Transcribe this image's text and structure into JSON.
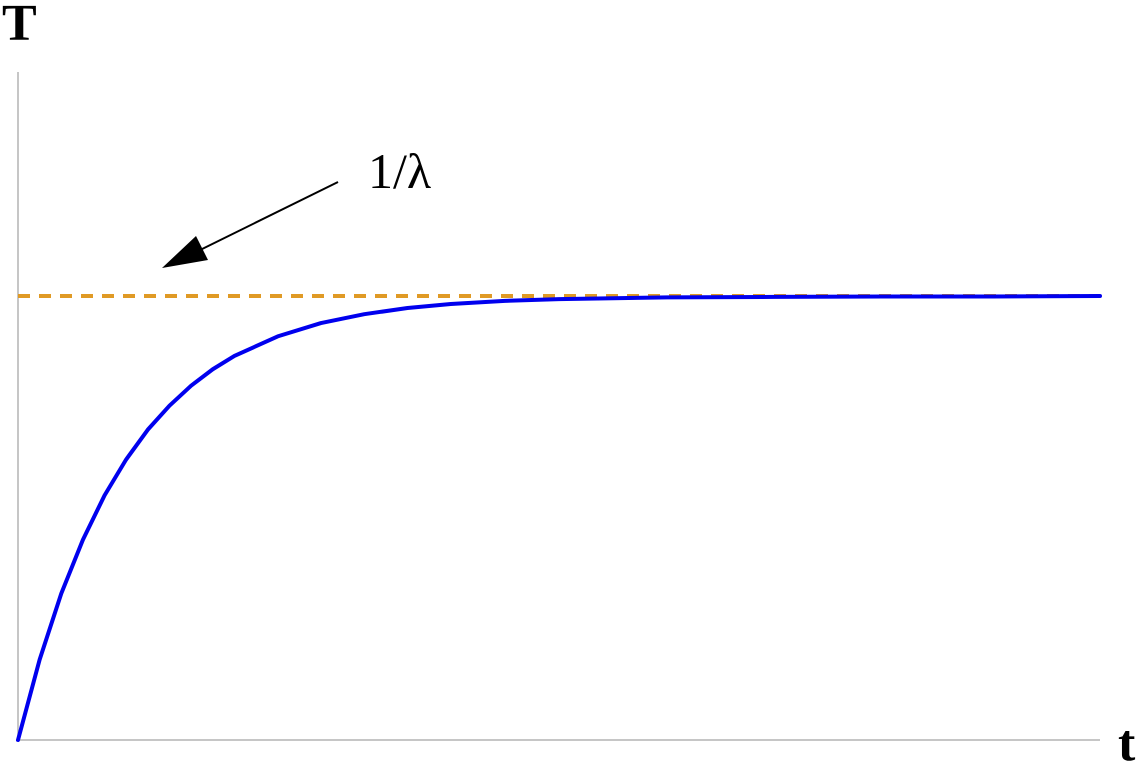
{
  "chart_data": {
    "type": "line",
    "xlabel": "t",
    "ylabel": "T",
    "xlim": [
      0,
      5
    ],
    "ylim": [
      0,
      1
    ],
    "grid": false,
    "series": [
      {
        "color": "#0000ee",
        "x": [
          0,
          0.1,
          0.2,
          0.3,
          0.4,
          0.5,
          0.6,
          0.7,
          0.8,
          0.9,
          1.0,
          1.2,
          1.4,
          1.6,
          1.8,
          2.0,
          2.25,
          2.5,
          2.75,
          3.0,
          3.5,
          4.0,
          4.5,
          5.0
        ],
        "y": [
          0,
          0.181,
          0.33,
          0.451,
          0.551,
          0.632,
          0.699,
          0.753,
          0.798,
          0.835,
          0.865,
          0.909,
          0.939,
          0.959,
          0.973,
          0.982,
          0.989,
          0.993,
          0.995,
          0.997,
          0.998,
          0.999,
          0.999,
          1.0
        ]
      }
    ],
    "reference_lines": [
      {
        "orientation": "horizontal",
        "y": 1,
        "style": "dashed",
        "color": "#e09a25"
      }
    ],
    "annotations": [
      {
        "text": "1/λ",
        "arrow": true
      }
    ]
  }
}
